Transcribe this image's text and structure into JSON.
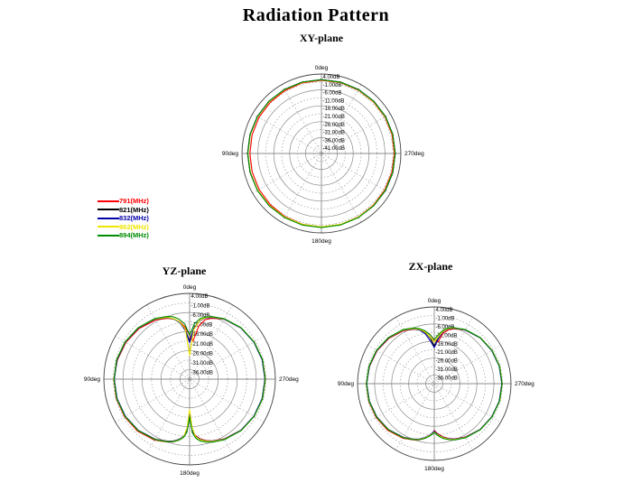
{
  "title": "Radiation Pattern",
  "legend": {
    "entries": [
      {
        "label": "791(MHz)",
        "color": "#ff0000"
      },
      {
        "label": "821(MHz)",
        "color": "#000000"
      },
      {
        "label": "832(MHz)",
        "color": "#0000a8"
      },
      {
        "label": "862(MHz)",
        "color": "#efe600"
      },
      {
        "label": "894(MHz)",
        "color": "#008c00"
      }
    ]
  },
  "chart_data": [
    {
      "type": "line",
      "polar": true,
      "title": "XY-plane",
      "angle_labels": [
        "0deg",
        "90deg",
        "180deg",
        "270deg"
      ],
      "radial_ticks": [
        "4.00dB",
        "-1.00dB",
        "-6.00dB",
        "-11.00dB",
        "-16.00dB",
        "-21.00dB",
        "-26.00dB",
        "-31.00dB",
        "-36.00dB",
        "-41.00dB"
      ],
      "tick_step_db": 5,
      "rmax": 4,
      "rmin": -46,
      "angles": [
        0,
        15,
        30,
        45,
        60,
        75,
        90,
        105,
        120,
        135,
        150,
        165,
        180,
        195,
        210,
        225,
        240,
        255,
        270,
        285,
        300,
        315,
        330,
        345
      ],
      "series": [
        {
          "name": "791(MHz)",
          "color": "#ff0000",
          "values": [
            0.1,
            0.0,
            -0.2,
            -0.4,
            -0.6,
            -0.8,
            -1.0,
            -0.9,
            -0.7,
            -0.4,
            -0.1,
            0.1,
            0.3,
            0.3,
            0.2,
            0.1,
            0.0,
            -0.1,
            -0.1,
            0.0,
            0.1,
            0.1,
            0.1,
            0.1
          ]
        },
        {
          "name": "821(MHz)",
          "color": "#000000",
          "values": [
            0.5,
            0.55,
            0.6,
            0.6,
            0.55,
            0.5,
            0.45,
            0.45,
            0.5,
            0.5,
            0.45,
            0.4,
            0.4,
            0.45,
            0.5,
            0.55,
            0.55,
            0.5,
            0.5,
            0.55,
            0.6,
            0.6,
            0.55,
            0.5
          ]
        },
        {
          "name": "832(MHz)",
          "color": "#0000a8",
          "values": [
            0.4,
            0.45,
            0.5,
            0.5,
            0.45,
            0.4,
            0.35,
            0.35,
            0.4,
            0.4,
            0.35,
            0.3,
            0.3,
            0.35,
            0.4,
            0.45,
            0.45,
            0.4,
            0.4,
            0.45,
            0.5,
            0.5,
            0.45,
            0.4
          ]
        },
        {
          "name": "862(MHz)",
          "color": "#efe600",
          "values": [
            0.3,
            0.35,
            0.4,
            0.4,
            0.35,
            0.3,
            0.25,
            0.25,
            0.3,
            0.3,
            0.25,
            0.2,
            0.2,
            0.25,
            0.3,
            0.35,
            0.35,
            0.3,
            0.3,
            0.35,
            0.4,
            0.4,
            0.35,
            0.3
          ]
        },
        {
          "name": "894(MHz)",
          "color": "#008c00",
          "values": [
            0.4,
            0.45,
            0.5,
            0.5,
            0.45,
            0.4,
            0.35,
            0.4,
            0.5,
            0.55,
            0.6,
            0.65,
            0.65,
            0.6,
            0.55,
            0.5,
            0.45,
            0.4,
            0.4,
            0.45,
            0.5,
            0.5,
            0.45,
            0.4
          ]
        }
      ]
    },
    {
      "type": "line",
      "polar": true,
      "title": "YZ-plane",
      "angle_labels": [
        "0deg",
        "90deg",
        "180deg",
        "270deg"
      ],
      "radial_ticks": [
        "4.00dB",
        "-1.00dB",
        "-6.00dB",
        "-11.00dB",
        "-16.00dB",
        "-21.00dB",
        "-26.00dB",
        "-31.00dB",
        "-36.00dB"
      ],
      "tick_step_db": 5,
      "rmax": 4,
      "rmin": -41,
      "angles": [
        0,
        5,
        10,
        15,
        20,
        30,
        45,
        60,
        75,
        90,
        105,
        120,
        135,
        150,
        160,
        165,
        170,
        174,
        177,
        180,
        183,
        186,
        190,
        195,
        200,
        210,
        225,
        240,
        255,
        270,
        285,
        300,
        315,
        330,
        340,
        345,
        350,
        355
      ],
      "series": [
        {
          "name": "791(MHz)",
          "color": "#ff0000",
          "values": [
            -18,
            -13.5,
            -10.2,
            -8.4,
            -7.0,
            -5.2,
            -3.5,
            -2.4,
            -1.8,
            -1.2,
            -1.2,
            -1.6,
            -2.4,
            -4.1,
            -5.9,
            -6.9,
            -8.5,
            -10.4,
            -13.5,
            -23.5,
            -14.5,
            -11.2,
            -9.2,
            -7.7,
            -6.5,
            -4.8,
            -3.0,
            -2.0,
            -1.4,
            -1.2,
            -1.4,
            -1.9,
            -2.9,
            -4.7,
            -7.0,
            -8.6,
            -12.5,
            -21
          ]
        },
        {
          "name": "821(MHz)",
          "color": "#000000",
          "values": [
            -21,
            -15,
            -10.5,
            -8.2,
            -6.6,
            -4.6,
            -3.0,
            -2.0,
            -1.5,
            -1.4,
            -1.5,
            -2.0,
            -2.9,
            -4.6,
            -6.3,
            -7.3,
            -8.8,
            -10.8,
            -14,
            -22.5,
            -14,
            -10.8,
            -8.8,
            -7.4,
            -6.3,
            -4.6,
            -2.9,
            -2.0,
            -1.5,
            -1.4,
            -1.5,
            -2.0,
            -2.9,
            -4.6,
            -6.4,
            -7.5,
            -9.7,
            -14
          ]
        },
        {
          "name": "832(MHz)",
          "color": "#0000a8",
          "values": [
            -21.8,
            -15.3,
            -10.7,
            -8.3,
            -6.7,
            -4.7,
            -3.1,
            -2.1,
            -1.6,
            -1.5,
            -1.6,
            -2.1,
            -3.0,
            -4.7,
            -6.4,
            -7.4,
            -8.9,
            -10.9,
            -14.2,
            -22.8,
            -14.2,
            -10.9,
            -8.9,
            -7.5,
            -6.4,
            -4.7,
            -3.0,
            -2.1,
            -1.6,
            -1.5,
            -1.6,
            -2.1,
            -3.0,
            -4.7,
            -6.5,
            -7.6,
            -9.8,
            -14.3
          ]
        },
        {
          "name": "862(MHz)",
          "color": "#efe600",
          "values": [
            -28.5,
            -14.5,
            -10.3,
            -8.1,
            -6.5,
            -4.5,
            -2.9,
            -1.9,
            -1.4,
            -1.3,
            -1.4,
            -1.9,
            -2.8,
            -4.5,
            -6.2,
            -7.2,
            -8.7,
            -10.6,
            -15.5,
            -25,
            -15.5,
            -10.6,
            -8.7,
            -7.3,
            -6.2,
            -4.5,
            -2.8,
            -1.9,
            -1.4,
            -1.3,
            -1.4,
            -1.9,
            -2.8,
            -4.5,
            -6.3,
            -7.4,
            -9.5,
            -14.8
          ]
        },
        {
          "name": "894(MHz)",
          "color": "#008c00",
          "values": [
            -18,
            -12,
            -9,
            -7,
            -6,
            -4.3,
            -2.8,
            -1.9,
            -1.4,
            -1.3,
            -1.4,
            -1.9,
            -2.8,
            -4.4,
            -6.0,
            -7.0,
            -8.5,
            -10.2,
            -13,
            -21,
            -12.8,
            -9.8,
            -8.0,
            -6.8,
            -5.8,
            -4.3,
            -2.8,
            -1.9,
            -1.4,
            -1.3,
            -1.4,
            -1.9,
            -2.8,
            -4.4,
            -6.1,
            -7.1,
            -8.6,
            -11.8
          ]
        }
      ]
    },
    {
      "type": "line",
      "polar": true,
      "title": "ZX-plane",
      "angle_labels": [
        "0deg",
        "90deg",
        "180deg",
        "270deg"
      ],
      "radial_ticks": [
        "4.00dB",
        "-1.00dB",
        "-6.00dB",
        "-11.00dB",
        "-16.00dB",
        "-21.00dB",
        "-26.00dB",
        "-31.00dB",
        "-36.00dB"
      ],
      "tick_step_db": 5,
      "rmax": 4,
      "rmin": -41,
      "angles": [
        0,
        5,
        10,
        15,
        20,
        30,
        45,
        60,
        75,
        90,
        105,
        120,
        135,
        150,
        160,
        165,
        170,
        174,
        177,
        180,
        183,
        186,
        190,
        195,
        200,
        210,
        225,
        240,
        255,
        270,
        285,
        300,
        315,
        330,
        340,
        345,
        350,
        355
      ],
      "series": [
        {
          "name": "791(MHz)",
          "color": "#ff0000",
          "values": [
            -15.5,
            -12,
            -9.8,
            -8.3,
            -7.0,
            -5.1,
            -3.4,
            -2.3,
            -1.7,
            -1.2,
            -1.2,
            -1.6,
            -2.4,
            -4.1,
            -5.9,
            -6.9,
            -8.4,
            -9.9,
            -11.2,
            -13.6,
            -12,
            -10.8,
            -9.2,
            -7.7,
            -6.5,
            -4.8,
            -3.0,
            -2.0,
            -1.4,
            -1.2,
            -1.4,
            -1.9,
            -2.9,
            -4.7,
            -6.8,
            -8.2,
            -11,
            -16.5
          ]
        },
        {
          "name": "821(MHz)",
          "color": "#000000",
          "values": [
            -19,
            -14,
            -10.5,
            -8.2,
            -6.7,
            -4.7,
            -3.0,
            -2.0,
            -1.5,
            -1.3,
            -1.5,
            -2.0,
            -2.9,
            -4.6,
            -6.3,
            -7.3,
            -8.8,
            -10.3,
            -11.5,
            -13,
            -11.5,
            -10.3,
            -8.8,
            -7.4,
            -6.3,
            -4.6,
            -2.9,
            -2.0,
            -1.5,
            -1.3,
            -1.5,
            -2.0,
            -2.9,
            -4.6,
            -6.4,
            -7.5,
            -9.7,
            -13.8
          ]
        },
        {
          "name": "832(MHz)",
          "color": "#0000a8",
          "values": [
            -19.8,
            -16,
            -11.5,
            -8.6,
            -6.9,
            -4.8,
            -3.1,
            -2.1,
            -1.6,
            -1.4,
            -1.6,
            -2.1,
            -3.0,
            -4.7,
            -6.4,
            -7.4,
            -8.9,
            -10.4,
            -11.7,
            -13.2,
            -11.7,
            -10.4,
            -8.9,
            -7.5,
            -6.4,
            -4.7,
            -3.0,
            -2.1,
            -1.6,
            -1.4,
            -1.6,
            -2.1,
            -3.0,
            -4.7,
            -6.5,
            -7.6,
            -9.8,
            -14.5
          ]
        },
        {
          "name": "862(MHz)",
          "color": "#efe600",
          "values": [
            -16.5,
            -13.5,
            -10.3,
            -8.1,
            -6.6,
            -4.6,
            -2.9,
            -1.9,
            -1.4,
            -1.2,
            -1.4,
            -1.9,
            -2.8,
            -4.5,
            -6.2,
            -7.2,
            -8.7,
            -10.1,
            -11.3,
            -12.7,
            -11.3,
            -10.1,
            -8.7,
            -7.3,
            -6.2,
            -4.5,
            -2.8,
            -1.9,
            -1.4,
            -1.2,
            -1.4,
            -1.9,
            -2.8,
            -4.5,
            -6.3,
            -7.4,
            -9.4,
            -13.3
          ]
        },
        {
          "name": "894(MHz)",
          "color": "#008c00",
          "values": [
            -15.2,
            -12.2,
            -9.5,
            -7.6,
            -6.2,
            -4.4,
            -2.8,
            -1.9,
            -1.4,
            -1.2,
            -1.4,
            -1.9,
            -2.8,
            -4.4,
            -6.0,
            -7.0,
            -8.4,
            -9.8,
            -11.0,
            -12.4,
            -10.9,
            -9.6,
            -8.2,
            -7.0,
            -5.9,
            -4.3,
            -2.8,
            -1.9,
            -1.4,
            -1.2,
            -1.4,
            -1.9,
            -2.8,
            -4.4,
            -6.1,
            -7.1,
            -8.7,
            -12
          ]
        }
      ]
    }
  ]
}
